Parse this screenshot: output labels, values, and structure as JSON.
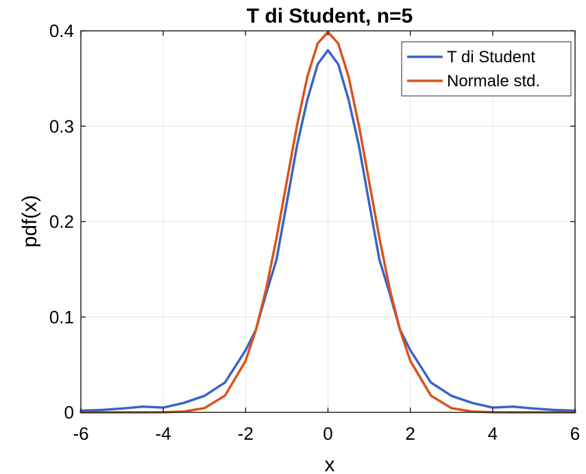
{
  "chart_data": {
    "type": "line",
    "title": "T di Student, n=5",
    "xlabel": "x",
    "ylabel": "pdf(x)",
    "xlim": [
      -6,
      6
    ],
    "ylim": [
      0,
      0.4
    ],
    "grid": true,
    "legend_position": "top-right",
    "x_ticks": [
      -6,
      -4,
      -2,
      0,
      2,
      4,
      6
    ],
    "x_tick_labels": [
      "-6",
      "-4",
      "-2",
      "0",
      "2",
      "4",
      "6"
    ],
    "y_ticks": [
      0,
      0.1,
      0.2,
      0.3,
      0.4
    ],
    "y_tick_labels": [
      "0",
      "0.1",
      "0.2",
      "0.3",
      "0.4"
    ],
    "x": [
      -6,
      -5.5,
      -5,
      -4.5,
      -4,
      -3.5,
      -3,
      -2.5,
      -2,
      -1.75,
      -1.5,
      -1.25,
      -1,
      -0.75,
      -0.5,
      -0.25,
      0,
      0.25,
      0.5,
      0.75,
      1,
      1.25,
      1.5,
      1.75,
      2,
      2.5,
      3,
      3.5,
      4,
      4.5,
      5,
      5.5,
      6
    ],
    "series": [
      {
        "name": "T di Student",
        "color": "#3a63c8",
        "values": [
          0.0018,
          0.0025,
          0.004,
          0.006,
          0.005,
          0.0099,
          0.0173,
          0.0313,
          0.0651,
          0.0866,
          0.1245,
          0.16,
          0.2197,
          0.28,
          0.3279,
          0.365,
          0.3796,
          0.365,
          0.3279,
          0.28,
          0.2197,
          0.16,
          0.1245,
          0.0866,
          0.0651,
          0.0313,
          0.0173,
          0.0099,
          0.005,
          0.006,
          0.004,
          0.0025,
          0.0018
        ]
      },
      {
        "name": "Normale std.",
        "color": "#d95319",
        "values": [
          0.0,
          0.0,
          0.0,
          0.0,
          0.0001,
          0.0009,
          0.0044,
          0.0175,
          0.054,
          0.0863,
          0.1295,
          0.1826,
          0.242,
          0.3011,
          0.3521,
          0.3867,
          0.3989,
          0.3867,
          0.3521,
          0.3011,
          0.242,
          0.1826,
          0.1295,
          0.0863,
          0.054,
          0.0175,
          0.0044,
          0.0009,
          0.0001,
          0.0,
          0.0,
          0.0,
          0.0
        ]
      }
    ]
  }
}
